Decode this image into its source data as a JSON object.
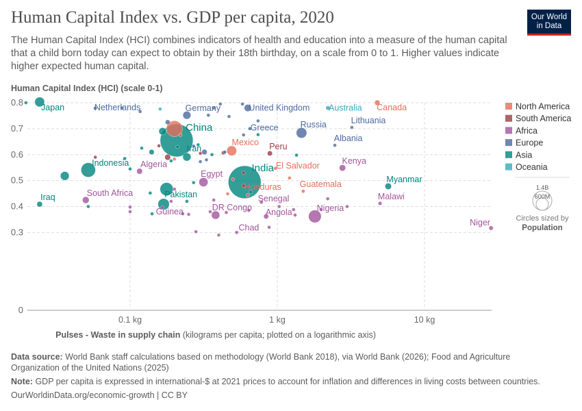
{
  "header": {
    "title": "Human Capital Index vs. GDP per capita, 2020",
    "subtitle": "The Human Capital Index (HCI) combines indicators of health and education into a measure of the human capital that a child born today can expect to obtain by their 18th birthday, on a scale from 0 to 1. Higher values indicate higher expected human capital.",
    "logo_line1": "Our World",
    "logo_line2": "in Data"
  },
  "footer": {
    "source_label": "Data source:",
    "source_text": "World Bank staff calculations based on methodology (World Bank 2018), via World Bank (2026); Food and Agriculture Organization of the United Nations (2025)",
    "note_label": "Note:",
    "note_text": "GDP per capita is expressed in international-$ at 2021 prices to account for inflation and differences in living costs between countries.",
    "url": "OurWorldinData.org/economic-growth | CC BY"
  },
  "chart_data": {
    "type": "scatter",
    "title": "Human Capital Index vs. GDP per capita, 2020",
    "ylabel": "Human Capital Index (HCI) (scale 0-1)",
    "xlabel_bold": "Pulses - Waste in supply chain",
    "xlabel_rest": " (kilograms per capita; plotted on a logarithmic axis)",
    "xscale": "log",
    "xlim": [
      0.018,
      29
    ],
    "ylim": [
      0,
      0.8
    ],
    "grid": true,
    "xticks": [
      {
        "v": 0.1,
        "label": "0.1 kg"
      },
      {
        "v": 1,
        "label": "1 kg"
      },
      {
        "v": 10,
        "label": "10 kg"
      }
    ],
    "yticks": [
      {
        "v": 0,
        "label": "0"
      },
      {
        "v": 0.3,
        "label": "0.3"
      },
      {
        "v": 0.4,
        "label": "0.4"
      },
      {
        "v": 0.5,
        "label": "0.5"
      },
      {
        "v": 0.6,
        "label": "0.6"
      },
      {
        "v": 0.7,
        "label": "0.7"
      },
      {
        "v": 0.8,
        "label": "0.8"
      }
    ],
    "legend": {
      "placement": "right",
      "items": [
        {
          "name": "North America",
          "color": "#e56e5a"
        },
        {
          "name": "South America",
          "color": "#9a3d44"
        },
        {
          "name": "Africa",
          "color": "#a2559c"
        },
        {
          "name": "Europe",
          "color": "#4c6a9c"
        },
        {
          "name": "Asia",
          "color": "#00847e"
        },
        {
          "name": "Oceania",
          "color": "#38aaba"
        }
      ],
      "size_legend": {
        "big": "1.4B",
        "small": "600M",
        "caption": "Circles sized by",
        "caption_bold": "Population"
      }
    },
    "points": [
      {
        "label": "Japan",
        "region": "Asia",
        "x": 0.0243,
        "y": 0.803,
        "pop": 125
      },
      {
        "label": "",
        "region": "Asia",
        "x": 0.0196,
        "y": 0.8,
        "pop": 10
      },
      {
        "label": "Netherlands",
        "region": "Europe",
        "x": 0.058,
        "y": 0.779,
        "pop": 17
      },
      {
        "label": "Germany",
        "region": "Europe",
        "x": 0.243,
        "y": 0.752,
        "pop": 83
      },
      {
        "label": "United Kingdom",
        "region": "Europe",
        "x": 0.63,
        "y": 0.78,
        "pop": 67
      },
      {
        "label": "Australia",
        "region": "Oceania",
        "x": 2.21,
        "y": 0.78,
        "pop": 25
      },
      {
        "label": "Canada",
        "region": "North America",
        "x": 4.78,
        "y": 0.8,
        "pop": 38
      },
      {
        "label": "Lithuania",
        "region": "Europe",
        "x": 3.21,
        "y": 0.705,
        "pop": 3
      },
      {
        "label": "Russia",
        "region": "Europe",
        "x": 1.46,
        "y": 0.684,
        "pop": 145
      },
      {
        "label": "Greece",
        "region": "Europe",
        "x": 0.74,
        "y": 0.73,
        "pop": 10
      },
      {
        "label": "Albania",
        "region": "Europe",
        "x": 2.46,
        "y": 0.636,
        "pop": 3
      },
      {
        "label": "Mexico",
        "region": "North America",
        "x": 0.49,
        "y": 0.615,
        "pop": 126
      },
      {
        "label": "Peru",
        "region": "South America",
        "x": 0.89,
        "y": 0.605,
        "pop": 33
      },
      {
        "label": "China",
        "region": "Asia",
        "x": 0.207,
        "y": 0.655,
        "pop": 1410
      },
      {
        "label": "",
        "region": "North America",
        "x": 0.2,
        "y": 0.7,
        "pop": 330
      },
      {
        "label": "Iran",
        "region": "Asia",
        "x": 0.243,
        "y": 0.591,
        "pop": 87
      },
      {
        "label": "Indonesia",
        "region": "Asia",
        "x": 0.052,
        "y": 0.541,
        "pop": 272
      },
      {
        "label": "Algeria",
        "region": "Africa",
        "x": 0.116,
        "y": 0.536,
        "pop": 44
      },
      {
        "label": "India",
        "region": "Asia",
        "x": 0.6,
        "y": 0.494,
        "pop": 1400
      },
      {
        "label": "El Salvador",
        "region": "North America",
        "x": 0.97,
        "y": 0.547,
        "pop": 6
      },
      {
        "label": "Kenya",
        "region": "Africa",
        "x": 2.77,
        "y": 0.549,
        "pop": 53
      },
      {
        "label": "Egypt",
        "region": "Africa",
        "x": 0.315,
        "y": 0.494,
        "pop": 107
      },
      {
        "label": "Honduras",
        "region": "North America",
        "x": 0.63,
        "y": 0.444,
        "pop": 10
      },
      {
        "label": "Guatemala",
        "region": "North America",
        "x": 1.5,
        "y": 0.459,
        "pop": 17
      },
      {
        "label": "Myanmar",
        "region": "Asia",
        "x": 5.67,
        "y": 0.478,
        "pop": 54
      },
      {
        "label": "Malawi",
        "region": "Africa",
        "x": 4.99,
        "y": 0.412,
        "pop": 19
      },
      {
        "label": "Senegal",
        "region": "Africa",
        "x": 0.78,
        "y": 0.417,
        "pop": 17
      },
      {
        "label": "South Africa",
        "region": "Africa",
        "x": 0.05,
        "y": 0.425,
        "pop": 59
      },
      {
        "label": "Iraq",
        "region": "Asia",
        "x": 0.0243,
        "y": 0.409,
        "pop": 41
      },
      {
        "label": "Pakistan",
        "region": "Asia",
        "x": 0.177,
        "y": 0.467,
        "pop": 225
      },
      {
        "label": "",
        "region": "Asia",
        "x": 0.169,
        "y": 0.409,
        "pop": 168
      },
      {
        "label": "Guinea",
        "region": "Africa",
        "x": 0.228,
        "y": 0.372,
        "pop": 13
      },
      {
        "label": "DR Congo",
        "region": "Africa",
        "x": 0.381,
        "y": 0.367,
        "pop": 90
      },
      {
        "label": "Angola",
        "region": "Africa",
        "x": 0.84,
        "y": 0.362,
        "pop": 33
      },
      {
        "label": "Nigeria",
        "region": "Africa",
        "x": 1.8,
        "y": 0.362,
        "pop": 210
      },
      {
        "label": "Chad",
        "region": "Africa",
        "x": 0.53,
        "y": 0.3,
        "pop": 16
      },
      {
        "label": "Niger",
        "region": "Africa",
        "x": 28.3,
        "y": 0.317,
        "pop": 24
      },
      {
        "label": "",
        "region": "Asia",
        "x": 0.036,
        "y": 0.518,
        "pop": 100
      },
      {
        "label": "",
        "region": "Asia",
        "x": 0.052,
        "y": 0.4,
        "pop": 10
      },
      {
        "label": "",
        "region": "Asia",
        "x": 0.166,
        "y": 0.69,
        "pop": 70
      },
      {
        "label": "",
        "region": "Asia",
        "x": 0.12,
        "y": 0.625,
        "pop": 15
      },
      {
        "label": "",
        "region": "Asia",
        "x": 0.14,
        "y": 0.61,
        "pop": 35
      },
      {
        "label": "",
        "region": "Asia",
        "x": 0.19,
        "y": 0.576,
        "pop": 15
      },
      {
        "label": "",
        "region": "Asia",
        "x": 0.141,
        "y": 0.372,
        "pop": 15
      },
      {
        "label": "",
        "region": "Asia",
        "x": 0.137,
        "y": 0.452,
        "pop": 8
      },
      {
        "label": "",
        "region": "Asia",
        "x": 0.1,
        "y": 0.545,
        "pop": 5
      },
      {
        "label": "",
        "region": "Asia",
        "x": 0.092,
        "y": 0.585,
        "pop": 5
      },
      {
        "label": "",
        "region": "Asia",
        "x": 0.243,
        "y": 0.42,
        "pop": 8
      },
      {
        "label": "",
        "region": "Asia",
        "x": 0.36,
        "y": 0.6,
        "pop": 10
      },
      {
        "label": "",
        "region": "Asia",
        "x": 0.74,
        "y": 0.677,
        "pop": 5
      },
      {
        "label": "",
        "region": "Asia",
        "x": 1.35,
        "y": 0.598,
        "pop": 5
      },
      {
        "label": "",
        "region": "Asia",
        "x": 0.66,
        "y": 0.456,
        "pop": 6
      },
      {
        "label": "",
        "region": "Asia",
        "x": 0.27,
        "y": 0.492,
        "pop": 6
      },
      {
        "label": "",
        "region": "Asia",
        "x": 0.21,
        "y": 0.63,
        "pop": 10
      },
      {
        "label": "",
        "region": "Asia",
        "x": 0.29,
        "y": 0.638,
        "pop": 5
      },
      {
        "label": "",
        "region": "Europe",
        "x": 0.18,
        "y": 0.725,
        "pop": 30
      },
      {
        "label": "",
        "region": "Europe",
        "x": 0.37,
        "y": 0.78,
        "pop": 5
      },
      {
        "label": "",
        "region": "Europe",
        "x": 0.41,
        "y": 0.795,
        "pop": 5
      },
      {
        "label": "",
        "region": "Europe",
        "x": 0.34,
        "y": 0.752,
        "pop": 5
      },
      {
        "label": "",
        "region": "Europe",
        "x": 0.47,
        "y": 0.747,
        "pop": 5
      },
      {
        "label": "",
        "region": "Europe",
        "x": 0.58,
        "y": 0.795,
        "pop": 5
      },
      {
        "label": "",
        "region": "Europe",
        "x": 0.32,
        "y": 0.61,
        "pop": 38
      },
      {
        "label": "",
        "region": "Europe",
        "x": 0.44,
        "y": 0.61,
        "pop": 5
      },
      {
        "label": "",
        "region": "Europe",
        "x": 0.33,
        "y": 0.58,
        "pop": 5
      },
      {
        "label": "",
        "region": "Europe",
        "x": 0.3,
        "y": 0.573,
        "pop": 5
      },
      {
        "label": "",
        "region": "Europe",
        "x": 0.117,
        "y": 0.766,
        "pop": 5
      },
      {
        "label": "",
        "region": "Europe",
        "x": 0.088,
        "y": 0.78,
        "pop": 5
      },
      {
        "label": "",
        "region": "Europe",
        "x": 0.59,
        "y": 0.676,
        "pop": 5
      },
      {
        "label": "",
        "region": "Europe",
        "x": 0.65,
        "y": 0.7,
        "pop": 5
      },
      {
        "label": "",
        "region": "Europe",
        "x": 0.27,
        "y": 0.633,
        "pop": 10
      },
      {
        "label": "",
        "region": "South America",
        "x": 0.157,
        "y": 0.634,
        "pop": 8
      },
      {
        "label": "",
        "region": "South America",
        "x": 0.18,
        "y": 0.59,
        "pop": 45
      },
      {
        "label": "",
        "region": "South America",
        "x": 0.058,
        "y": 0.59,
        "pop": 5
      },
      {
        "label": "",
        "region": "South America",
        "x": 0.43,
        "y": 0.607,
        "pop": 20
      },
      {
        "label": "",
        "region": "South America",
        "x": 0.3,
        "y": 0.605,
        "pop": 5
      },
      {
        "label": "",
        "region": "South America",
        "x": 0.59,
        "y": 0.53,
        "pop": 5
      },
      {
        "label": "",
        "region": "South America",
        "x": 0.59,
        "y": 0.48,
        "pop": 5
      },
      {
        "label": "",
        "region": "Africa",
        "x": 0.2,
        "y": 0.467,
        "pop": 5
      },
      {
        "label": "",
        "region": "Africa",
        "x": 0.37,
        "y": 0.425,
        "pop": 5
      },
      {
        "label": "",
        "region": "Africa",
        "x": 0.1,
        "y": 0.398,
        "pop": 5
      },
      {
        "label": "",
        "region": "Africa",
        "x": 0.1,
        "y": 0.38,
        "pop": 5
      },
      {
        "label": "",
        "region": "Africa",
        "x": 0.166,
        "y": 0.396,
        "pop": 5
      },
      {
        "label": "",
        "region": "Africa",
        "x": 0.28,
        "y": 0.303,
        "pop": 5
      },
      {
        "label": "",
        "region": "Africa",
        "x": 0.4,
        "y": 0.29,
        "pop": 5
      },
      {
        "label": "",
        "region": "Africa",
        "x": 0.88,
        "y": 0.32,
        "pop": 5
      },
      {
        "label": "",
        "region": "Africa",
        "x": 1.03,
        "y": 0.4,
        "pop": 5
      },
      {
        "label": "",
        "region": "Africa",
        "x": 1.29,
        "y": 0.388,
        "pop": 8
      },
      {
        "label": "",
        "region": "Africa",
        "x": 1.32,
        "y": 0.367,
        "pop": 5
      },
      {
        "label": "",
        "region": "Africa",
        "x": 1.98,
        "y": 0.388,
        "pop": 5
      },
      {
        "label": "",
        "region": "Africa",
        "x": 2.98,
        "y": 0.4,
        "pop": 5
      },
      {
        "label": "",
        "region": "Africa",
        "x": 2.2,
        "y": 0.43,
        "pop": 5
      },
      {
        "label": "",
        "region": "Africa",
        "x": 0.64,
        "y": 0.385,
        "pop": 15
      },
      {
        "label": "",
        "region": "Africa",
        "x": 0.25,
        "y": 0.37,
        "pop": 5
      },
      {
        "label": "",
        "region": "Africa",
        "x": 0.45,
        "y": 0.377,
        "pop": 5
      },
      {
        "label": "",
        "region": "Africa",
        "x": 0.35,
        "y": 0.38,
        "pop": 5
      },
      {
        "label": "",
        "region": "Africa",
        "x": 0.19,
        "y": 0.42,
        "pop": 5
      },
      {
        "label": "",
        "region": "North America",
        "x": 0.22,
        "y": 0.676,
        "pop": 5
      },
      {
        "label": "",
        "region": "North America",
        "x": 0.2,
        "y": 0.583,
        "pop": 5
      },
      {
        "label": "",
        "region": "North America",
        "x": 0.46,
        "y": 0.449,
        "pop": 5
      },
      {
        "label": "",
        "region": "North America",
        "x": 1.21,
        "y": 0.51,
        "pop": 5
      },
      {
        "label": "",
        "region": "North America",
        "x": 0.5,
        "y": 0.505,
        "pop": 5
      },
      {
        "label": "",
        "region": "Oceania",
        "x": 0.16,
        "y": 0.776,
        "pop": 3
      }
    ]
  }
}
